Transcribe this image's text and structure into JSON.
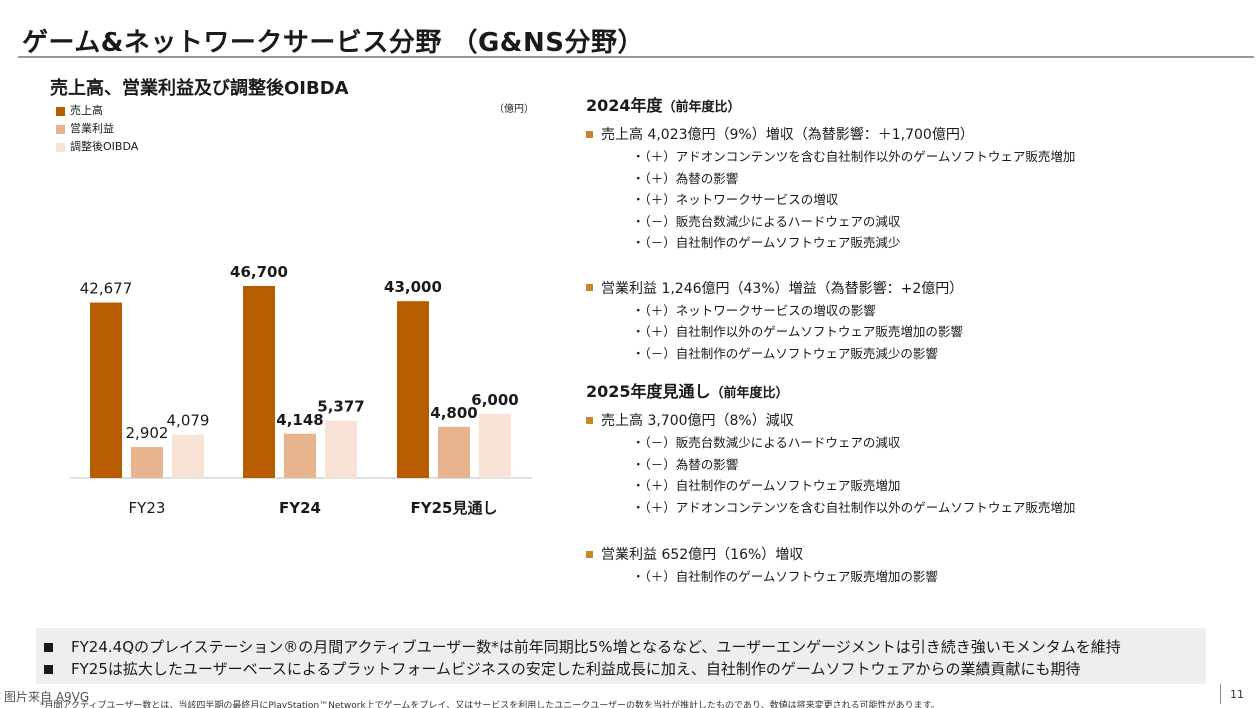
{
  "page": {
    "title": "ゲーム&ネットワークサービス分野 （G&NS分野）",
    "number": "11",
    "watermark": "图片来自 A9VG"
  },
  "chart_data": {
    "type": "bar",
    "title": "売上高、営業利益及び調整後OIBDA",
    "unit": "（億円）",
    "categories": [
      "FY23",
      "FY24",
      "FY25見通し"
    ],
    "categories_bold": [
      false,
      true,
      true
    ],
    "series": [
      {
        "name": "売上高",
        "color": "#b85c00",
        "values": [
          42677,
          46700,
          43000
        ],
        "labels": [
          "42,677",
          "46,700",
          "43,000"
        ],
        "bold": [
          false,
          true,
          true
        ]
      },
      {
        "name": "営業利益",
        "color": "#e8b48e",
        "values": [
          2902,
          4148,
          4800
        ],
        "labels": [
          "2,902",
          "4,148",
          "4,800"
        ],
        "bold": [
          false,
          true,
          true
        ]
      },
      {
        "name": "調整後OIBDA",
        "color": "#f9e3d7",
        "values": [
          4079,
          5377,
          6000
        ],
        "labels": [
          "4,079",
          "5,377",
          "6,000"
        ],
        "bold": [
          false,
          true,
          true
        ]
      }
    ],
    "scale": "broken axis (revenue bars compressed)",
    "grid": false,
    "legend_position": "top-left"
  },
  "fy2024": {
    "title": "2024年度",
    "title_note": "（前年度比）",
    "revenue": {
      "headline": "売上高 4,023億円（9%）増収（為替影響：＋1,700億円）",
      "points": [
        "・（＋）アドオンコンテンツを含む自社制作以外のゲームソフトウェア販売増加",
        "・（＋）為替の影響",
        "・（＋）ネットワークサービスの増収",
        "・（－）販売台数減少によるハードウェアの減収",
        "・（－）自社制作のゲームソフトウェア販売減少"
      ]
    },
    "operating_income": {
      "headline": "営業利益 1,246億円（43%）増益（為替影響：+2億円）",
      "points": [
        "・（＋）ネットワークサービスの増収の影響",
        "・（＋）自社制作以外のゲームソフトウェア販売増加の影響",
        "・（－）自社制作のゲームソフトウェア販売減少の影響"
      ]
    }
  },
  "fy2025": {
    "title": "2025年度見通し",
    "title_note": "（前年度比）",
    "revenue": {
      "headline": "売上高 3,700億円（8%）減収",
      "points": [
        "・（－）販売台数減少によるハードウェアの減収",
        "・（－）為替の影響",
        "・（＋）自社制作のゲームソフトウェア販売増加",
        "・（＋）アドオンコンテンツを含む自社制作以外のゲームソフトウェア販売増加"
      ]
    },
    "operating_income": {
      "headline": "営業利益 652億円（16%）増収",
      "points": [
        "・（＋）自社制作のゲームソフトウェア販売増加の影響"
      ]
    }
  },
  "highlights": [
    "FY24.4Qのプレイステーション®の月間アクティブユーザー数*は前年同期比5%増となるなど、ユーザーエンゲージメントは引き続き強いモメンタムを維持",
    "FY25は拡大したユーザーベースによるプラットフォームビジネスの安定した利益成長に加え、自社制作のゲームソフトウェアからの業績貢献にも期待"
  ],
  "footnote": "*月間アクティブユーザー数とは、当該四半期の最終月にPlayStation™Network上でゲームをプレイ、又はサービスを利用したユニークユーザーの数を当社が推計したものであり、数値は将来変更される可能性があります。"
}
